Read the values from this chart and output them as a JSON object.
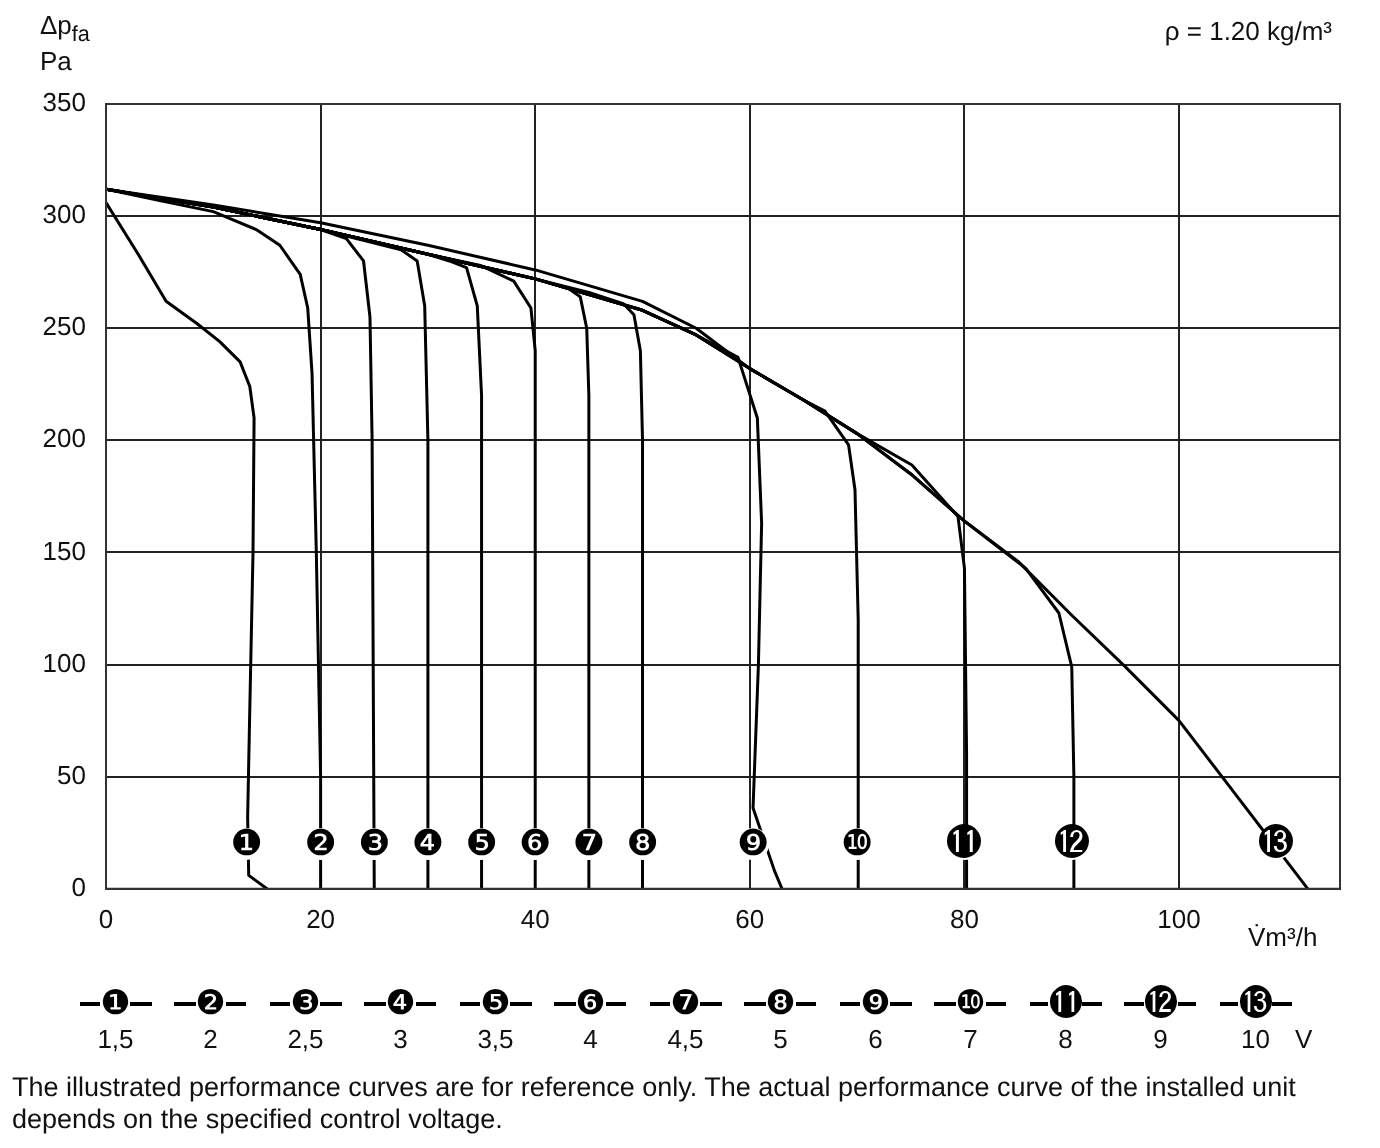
{
  "chart_data": {
    "type": "line",
    "xlabel": "V̇m³/h",
    "ylabel": "Δp$_{fa}$ Pa",
    "legend_title": "V",
    "xlim": [
      0,
      115
    ],
    "xticks": [
      0,
      20,
      40,
      60,
      80,
      100
    ],
    "ylim": [
      0,
      350
    ],
    "yticks": [
      0,
      50,
      100,
      150,
      200,
      250,
      300,
      350
    ],
    "grid": true,
    "legend": "bottom",
    "marker": "none",
    "line_style": "solid",
    "series": [
      {
        "name": "1,5",
        "color": "#000000",
        "x": [
          0,
          3,
          5.6,
          8.5,
          10.6,
          12.5,
          13.4,
          13.8,
          13.7,
          13.4,
          13.2,
          13.3,
          15
        ],
        "values": [
          306,
          283,
          262,
          252,
          244,
          235,
          224,
          210,
          150,
          80,
          32,
          6,
          0
        ]
      },
      {
        "name": "2",
        "color": "#000000",
        "x": [
          0,
          5,
          10,
          14,
          16.2,
          18.1,
          18.8,
          19.2,
          19.6,
          20,
          20
        ],
        "values": [
          312,
          307,
          302,
          294,
          287,
          274,
          259,
          230,
          150,
          50,
          0
        ]
      },
      {
        "name": "2,5",
        "color": "#000000",
        "x": [
          0,
          10,
          20,
          22.4,
          24,
          24.6,
          24.8,
          25
        ],
        "values": [
          312,
          304,
          294,
          290,
          280,
          255,
          200,
          0
        ]
      },
      {
        "name": "3",
        "color": "#000000",
        "x": [
          0,
          10,
          20,
          27.5,
          29,
          29.7,
          30,
          30
        ],
        "values": [
          312,
          304,
          294,
          285,
          280,
          260,
          200,
          0
        ]
      },
      {
        "name": "3,5",
        "color": "#000000",
        "x": [
          0,
          10,
          20,
          30,
          32,
          33.6,
          34.6,
          35,
          35
        ],
        "values": [
          312,
          304,
          294,
          283,
          280,
          277,
          260,
          220,
          0
        ]
      },
      {
        "name": "4",
        "color": "#000000",
        "x": [
          0,
          10,
          20,
          30,
          34.9,
          38,
          39.6,
          40,
          40
        ],
        "values": [
          312,
          304,
          294,
          283,
          278,
          271,
          259,
          240,
          0
        ]
      },
      {
        "name": "4,5",
        "color": "#000000",
        "x": [
          0,
          10,
          20,
          30,
          40,
          43,
          44.2,
          44.8,
          45,
          45
        ],
        "values": [
          312,
          304,
          294,
          283,
          272,
          268,
          264,
          250,
          220,
          0
        ]
      },
      {
        "name": "5",
        "color": "#000000",
        "x": [
          0,
          10,
          20,
          30,
          40,
          45,
          48.2,
          49.2,
          49.8,
          50,
          50
        ],
        "values": [
          312,
          304,
          294,
          283,
          272,
          266,
          261,
          256,
          240,
          200,
          0
        ]
      },
      {
        "name": "6",
        "color": "#000000",
        "x": [
          0,
          10,
          20,
          30,
          40,
          50,
          55,
          58.9,
          60.7,
          61.1,
          60.8,
          60.3,
          62.3,
          63
        ],
        "values": [
          312,
          304,
          294,
          283,
          272,
          258,
          247,
          237,
          210,
          163,
          100,
          36,
          8,
          0
        ]
      },
      {
        "name": "7",
        "color": "#000000",
        "x": [
          0,
          10,
          20,
          30,
          40,
          50,
          55,
          60,
          65,
          67,
          69.2,
          69.8,
          70.1,
          70.1
        ],
        "values": [
          312,
          304,
          294,
          283,
          272,
          258,
          247,
          232,
          218,
          213,
          198,
          178,
          120,
          0
        ]
      },
      {
        "name": "8",
        "color": "#000000",
        "x": [
          0,
          10,
          20,
          30,
          40,
          50,
          55,
          60,
          65,
          70,
          75.1,
          79.4,
          80,
          80.2,
          80.2
        ],
        "values": [
          312,
          304,
          294,
          283,
          272,
          258,
          247,
          232,
          218,
          203,
          189,
          166,
          143,
          60,
          0
        ]
      },
      {
        "name": "9",
        "color": "#000000",
        "x": [
          0,
          10,
          20,
          30,
          40,
          50,
          55,
          60,
          65,
          70,
          75,
          80,
          85.7,
          88.8,
          90,
          90.2,
          90.2
        ],
        "values": [
          312,
          304,
          294,
          283,
          272,
          258,
          247,
          232,
          218,
          203,
          185,
          164,
          143,
          123,
          99,
          50,
          0
        ]
      },
      {
        "name": "10",
        "color": "#000000",
        "x": [
          0,
          10,
          20,
          30,
          40,
          50,
          55,
          60,
          65,
          70,
          75,
          80,
          85,
          90,
          95,
          100,
          104,
          112
        ],
        "values": [
          312,
          305,
          297,
          287,
          276,
          262,
          250,
          232,
          218,
          203,
          185,
          164,
          146,
          122,
          99,
          75,
          50,
          0
        ]
      }
    ],
    "annotations": [
      "ρ = 1.20 kg/m³",
      {
        "text": "❶",
        "x": 13.1,
        "y": 20
      },
      {
        "text": "❷",
        "x": 20,
        "y": 20
      },
      {
        "text": "❸",
        "x": 25,
        "y": 20
      },
      {
        "text": "❹",
        "x": 30,
        "y": 20
      },
      {
        "text": "❺",
        "x": 35,
        "y": 20
      },
      {
        "text": "❻",
        "x": 40,
        "y": 20
      },
      {
        "text": "❼",
        "x": 45,
        "y": 20
      },
      {
        "text": "❽",
        "x": 50,
        "y": 20
      },
      {
        "text": "❾",
        "x": 60.3,
        "y": 20
      },
      {
        "text": "❿",
        "x": 70,
        "y": 20
      },
      {
        "text": "⓫",
        "x": 80,
        "y": 20
      },
      {
        "text": "⓬",
        "x": 90,
        "y": 20
      },
      {
        "text": "⓭",
        "x": 109,
        "y": 20
      },
      "The illustrated performance curves are for reference only. The actual performance curve of the installed unit depends on the specified control voltage."
    ]
  }
}
